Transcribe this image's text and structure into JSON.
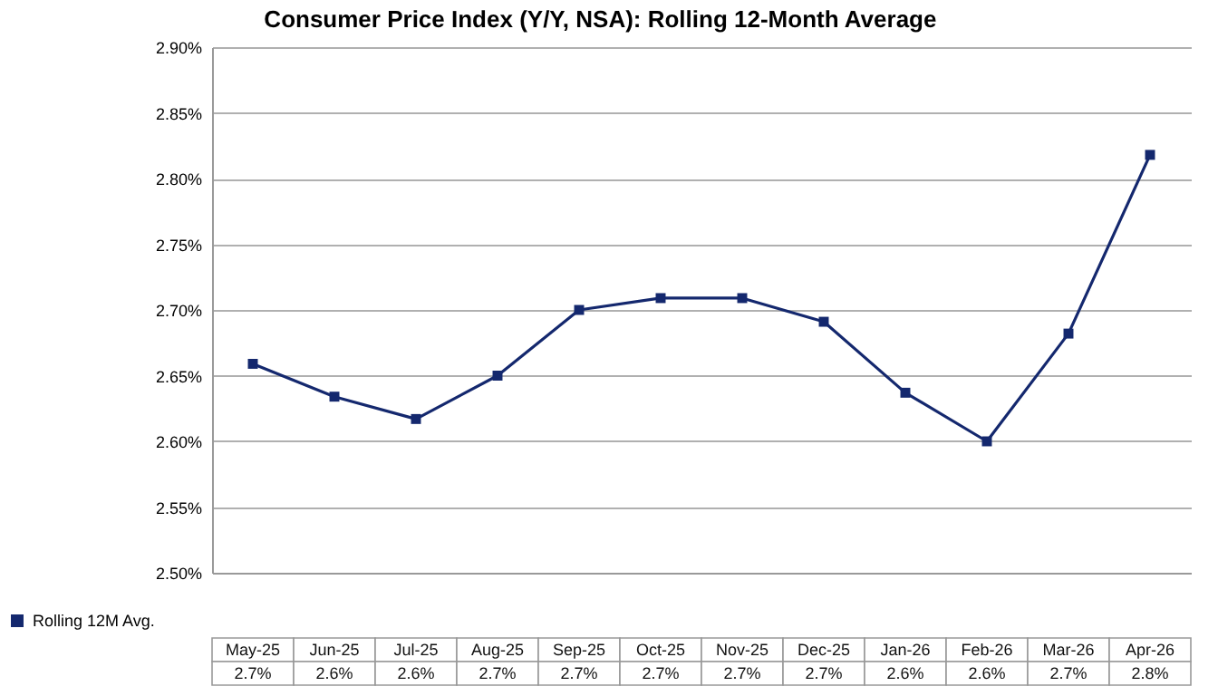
{
  "chart_data": {
    "type": "line",
    "title": "Consumer Price Index (Y/Y, NSA): Rolling 12-Month Average",
    "categories": [
      "May-25",
      "Jun-25",
      "Jul-25",
      "Aug-25",
      "Sep-25",
      "Oct-25",
      "Nov-25",
      "Dec-25",
      "Jan-26",
      "Feb-26",
      "Mar-26",
      "Apr-26"
    ],
    "series": [
      {
        "name": "Rolling 12M Avg.",
        "color": "#14286e",
        "values": [
          2.659,
          2.634,
          2.617,
          2.65,
          2.7,
          2.709,
          2.709,
          2.691,
          2.637,
          2.6,
          2.682,
          2.818
        ],
        "value_labels": [
          "2.7%",
          "2.6%",
          "2.6%",
          "2.7%",
          "2.7%",
          "2.7%",
          "2.7%",
          "2.7%",
          "2.6%",
          "2.6%",
          "2.7%",
          "2.8%"
        ]
      }
    ],
    "ylim": [
      2.5,
      2.9
    ],
    "yticks": [
      {
        "value": 2.5,
        "label": "2.50%"
      },
      {
        "value": 2.55,
        "label": "2.55%"
      },
      {
        "value": 2.6,
        "label": "2.60%"
      },
      {
        "value": 2.65,
        "label": "2.65%"
      },
      {
        "value": 2.7,
        "label": "2.70%"
      },
      {
        "value": 2.75,
        "label": "2.75%"
      },
      {
        "value": 2.8,
        "label": "2.80%"
      },
      {
        "value": 2.85,
        "label": "2.85%"
      },
      {
        "value": 2.9,
        "label": "2.90%"
      }
    ],
    "grid": "y",
    "legend": "bottom left",
    "marker": "square",
    "line_style": "solid"
  }
}
